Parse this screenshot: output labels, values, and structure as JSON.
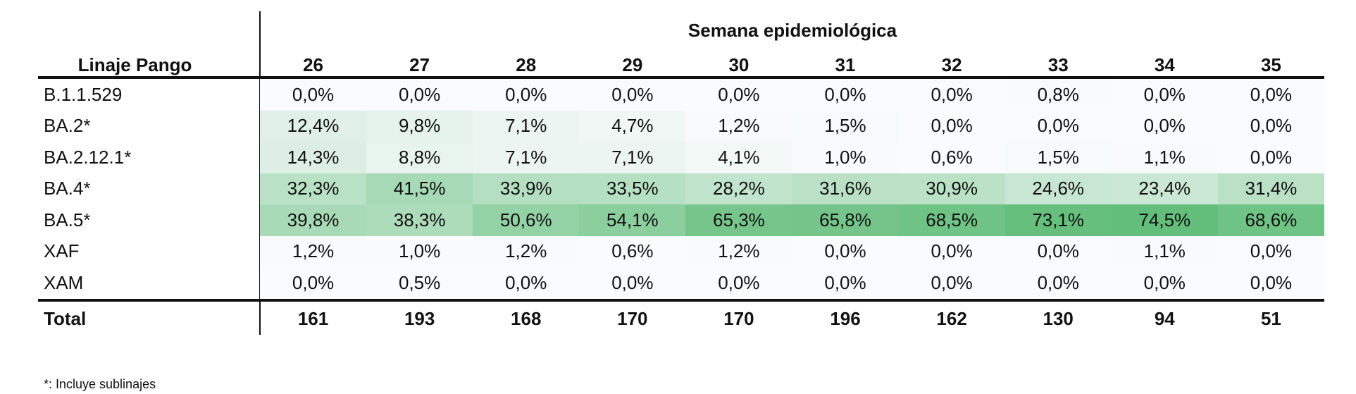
{
  "header_group": "Semana epidemiológica",
  "row_header": "Linaje Pango",
  "weeks": [
    "26",
    "27",
    "28",
    "29",
    "30",
    "31",
    "32",
    "33",
    "34",
    "35"
  ],
  "rows": [
    {
      "lineage": "B.1.1.529",
      "values": [
        "0,0%",
        "0,0%",
        "0,0%",
        "0,0%",
        "0,0%",
        "0,0%",
        "0,0%",
        "0,8%",
        "0,0%",
        "0,0%"
      ]
    },
    {
      "lineage": "BA.2*",
      "values": [
        "12,4%",
        "9,8%",
        "7,1%",
        "4,7%",
        "1,2%",
        "1,5%",
        "0,0%",
        "0,0%",
        "0,0%",
        "0,0%"
      ]
    },
    {
      "lineage": "BA.2.12.1*",
      "values": [
        "14,3%",
        "8,8%",
        "7,1%",
        "7,1%",
        "4,1%",
        "1,0%",
        "0,6%",
        "1,5%",
        "1,1%",
        "0,0%"
      ]
    },
    {
      "lineage": "BA.4*",
      "values": [
        "32,3%",
        "41,5%",
        "33,9%",
        "33,5%",
        "28,2%",
        "31,6%",
        "30,9%",
        "24,6%",
        "23,4%",
        "31,4%"
      ]
    },
    {
      "lineage": "BA.5*",
      "values": [
        "39,8%",
        "38,3%",
        "50,6%",
        "54,1%",
        "65,3%",
        "65,8%",
        "68,5%",
        "73,1%",
        "74,5%",
        "68,6%"
      ]
    },
    {
      "lineage": "XAF",
      "values": [
        "1,2%",
        "1,0%",
        "1,2%",
        "0,6%",
        "1,2%",
        "0,0%",
        "0,0%",
        "0,0%",
        "1,1%",
        "0,0%"
      ]
    },
    {
      "lineage": "XAM",
      "values": [
        "0,0%",
        "0,5%",
        "0,0%",
        "0,0%",
        "0,0%",
        "0,0%",
        "0,0%",
        "0,0%",
        "0,0%",
        "0,0%"
      ]
    }
  ],
  "total": {
    "label": "Total",
    "values": [
      "161",
      "193",
      "168",
      "170",
      "170",
      "196",
      "162",
      "130",
      "94",
      "51"
    ]
  },
  "footnote": "*: Incluye sublinajes",
  "colors": {
    "scale_min": "#FAFBFD",
    "scale_max": "#63BE7B"
  }
}
